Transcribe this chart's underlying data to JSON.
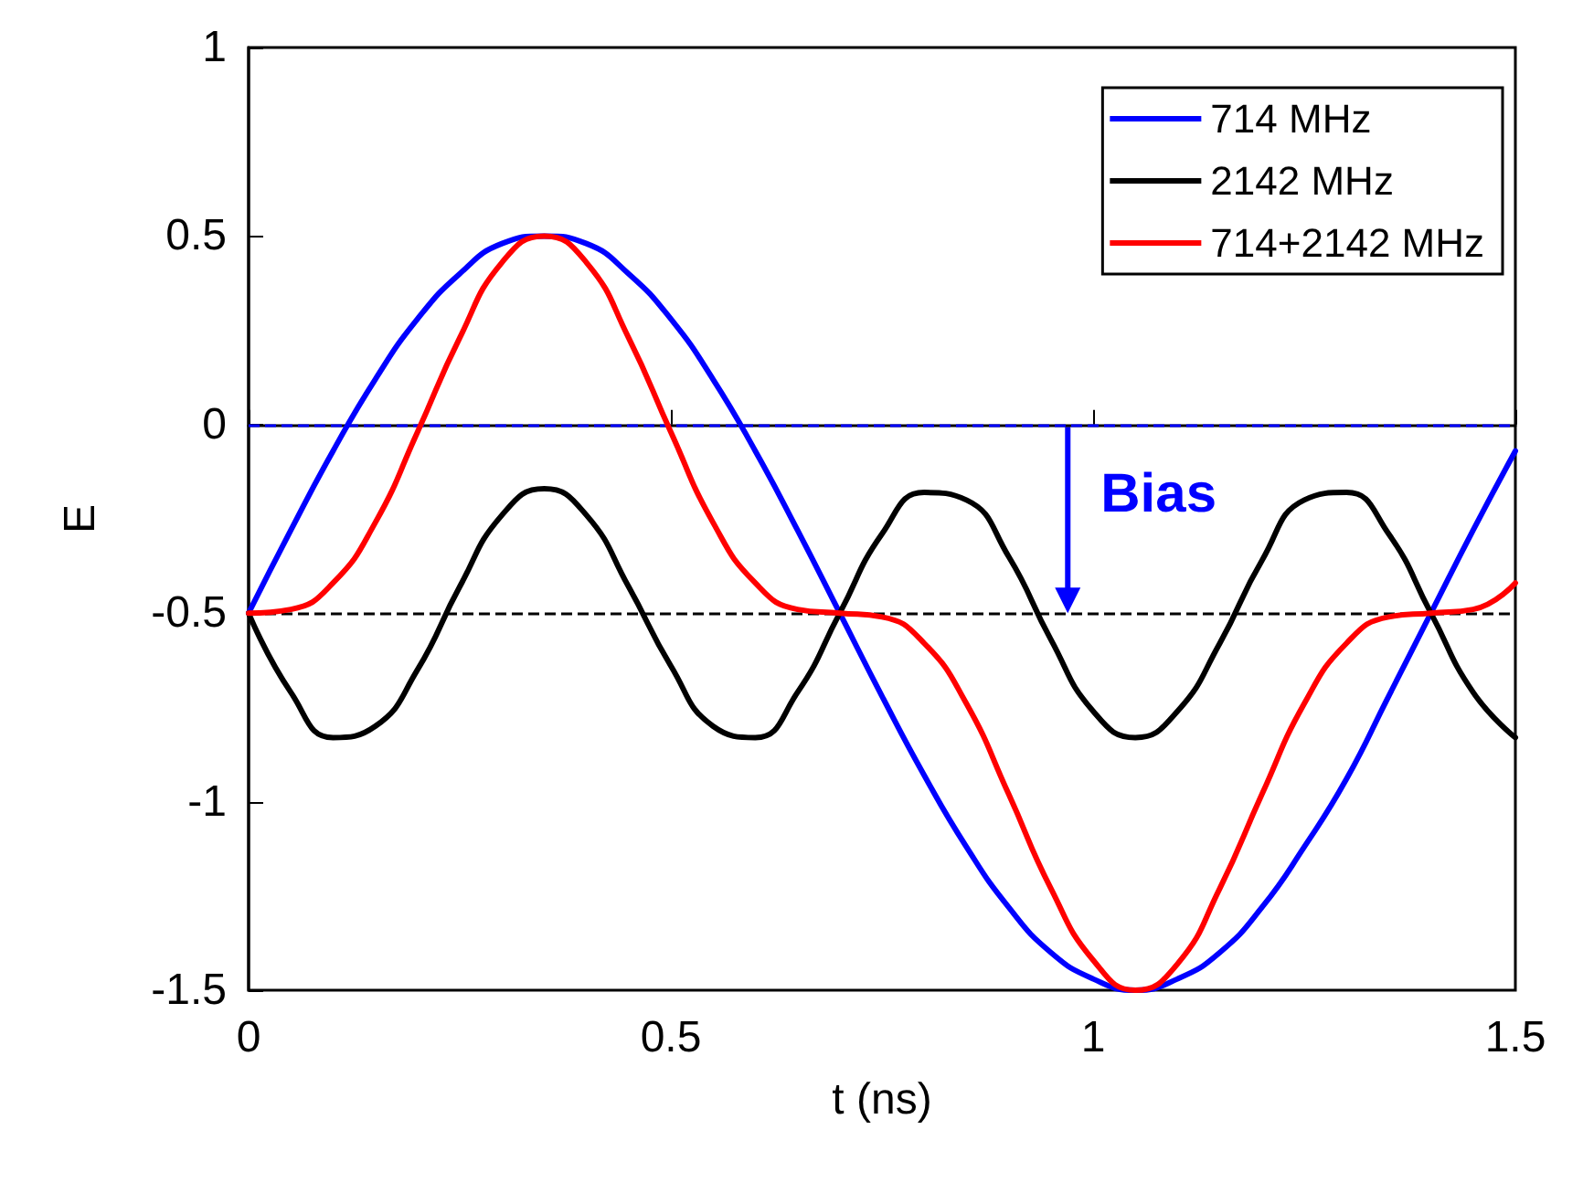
{
  "chart_data": {
    "type": "line",
    "xlabel": "t (ns)",
    "ylabel": "E",
    "x": [
      0,
      0.05,
      0.1,
      0.15,
      0.2,
      0.25,
      0.3,
      0.35,
      0.4,
      0.45,
      0.5,
      0.55,
      0.6,
      0.65,
      0.7,
      0.75,
      0.8,
      0.85,
      0.9,
      0.95,
      1.0,
      1.05,
      1.1,
      1.15,
      1.2,
      1.25,
      1.3,
      1.35,
      1.4,
      1.45,
      1.5
    ],
    "series": [
      {
        "name": "714 MHz",
        "color": "#0000ff",
        "values": [
          -0.5,
          -0.28,
          -0.07,
          0.12,
          0.28,
          0.4,
          0.48,
          0.5,
          0.48,
          0.4,
          0.28,
          0.12,
          -0.07,
          -0.28,
          -0.5,
          -0.72,
          -0.93,
          -1.12,
          -1.28,
          -1.4,
          -1.47,
          -1.5,
          -1.47,
          -1.4,
          -1.28,
          -1.12,
          -0.94,
          -0.72,
          -0.5,
          -0.28,
          -0.07
        ]
      },
      {
        "name": "2142 MHz",
        "color": "#000000",
        "values": [
          -0.5,
          -0.71,
          -0.83,
          -0.8,
          -0.65,
          -0.43,
          -0.24,
          -0.17,
          -0.24,
          -0.43,
          -0.64,
          -0.8,
          -0.83,
          -0.71,
          -0.5,
          -0.29,
          -0.18,
          -0.2,
          -0.35,
          -0.57,
          -0.76,
          -0.83,
          -0.76,
          -0.58,
          -0.36,
          -0.2,
          -0.18,
          -0.29,
          -0.5,
          -0.71,
          -0.83
        ]
      },
      {
        "name": "714+2142 MHz",
        "color": "#ff0000",
        "values": [
          -0.5,
          -0.49,
          -0.42,
          -0.26,
          -0.02,
          0.23,
          0.43,
          0.5,
          0.43,
          0.23,
          -0.02,
          -0.26,
          -0.42,
          -0.49,
          -0.5,
          -0.51,
          -0.58,
          -0.74,
          -0.98,
          -1.23,
          -1.42,
          -1.5,
          -1.43,
          -1.23,
          -0.98,
          -0.74,
          -0.58,
          -0.51,
          -0.5,
          -0.49,
          -0.42
        ]
      }
    ],
    "xlim": [
      0,
      1.5
    ],
    "xticks": [
      0,
      0.5,
      1,
      1.5
    ],
    "ylim": [
      -1.5,
      1
    ],
    "yticks": [
      -1.5,
      -1,
      -0.5,
      0,
      0.5,
      1
    ],
    "ref_lines": [
      {
        "axis": "y",
        "value": 0,
        "label": null,
        "color": "#0000ff",
        "line_style": "dashed"
      },
      {
        "axis": "y",
        "value": -0.5,
        "label": null,
        "color": "#000000",
        "line_style": "dashed"
      }
    ],
    "annotations": [
      {
        "text": "Bias",
        "x": 0.97,
        "y": -0.5
      }
    ],
    "legend": "top right",
    "grid": false,
    "marker": "none",
    "line_style": "solid"
  }
}
